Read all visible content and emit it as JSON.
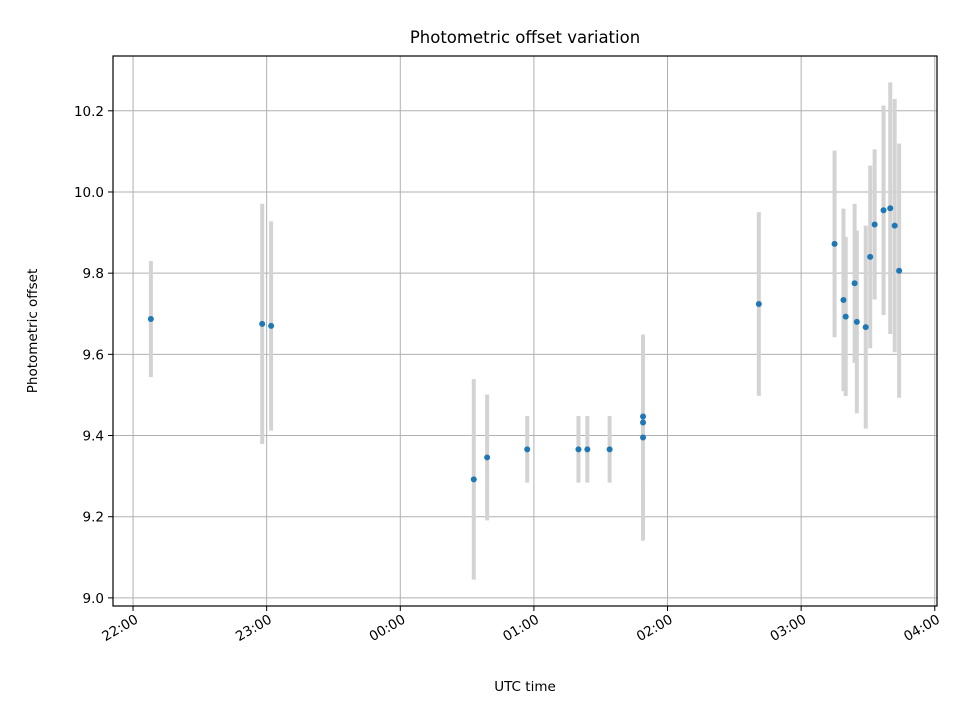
{
  "chart_data": {
    "type": "scatter",
    "title": "Photometric offset variation",
    "xlabel": "UTC time",
    "ylabel": "Photometric offset",
    "xlim": [
      "21:51",
      "04:01"
    ],
    "ylim": [
      8.98,
      10.335
    ],
    "grid": true,
    "marker_color": "#1f77b4",
    "errorbar_color": "#d3d3d3",
    "x_ticks": [
      "22:00",
      "23:00",
      "00:00",
      "01:00",
      "02:00",
      "03:00",
      "04:00"
    ],
    "y_ticks": [
      "9.0",
      "9.2",
      "9.4",
      "9.6",
      "9.8",
      "10.0",
      "10.2"
    ],
    "points": [
      {
        "x": "22:08",
        "y": 9.687,
        "yerr": 0.143
      },
      {
        "x": "22:58",
        "y": 9.675,
        "yerr": 0.296
      },
      {
        "x": "23:02",
        "y": 9.67,
        "yerr": 0.258
      },
      {
        "x": "00:33",
        "y": 9.292,
        "yerr": 0.247
      },
      {
        "x": "00:39",
        "y": 9.346,
        "yerr": 0.155
      },
      {
        "x": "00:57",
        "y": 9.366,
        "yerr": 0.082
      },
      {
        "x": "01:20",
        "y": 9.366,
        "yerr": 0.082
      },
      {
        "x": "01:24",
        "y": 9.366,
        "yerr": 0.082
      },
      {
        "x": "01:34",
        "y": 9.366,
        "yerr": 0.082
      },
      {
        "x": "01:49",
        "y": 9.447,
        "yerr": 0.171
      },
      {
        "x": "01:49",
        "y": 9.432,
        "yerr": 0.16
      },
      {
        "x": "01:49",
        "y": 9.395,
        "yerr": 0.254
      },
      {
        "x": "02:41",
        "y": 9.724,
        "yerr": 0.226
      },
      {
        "x": "03:15",
        "y": 9.872,
        "yerr": 0.23
      },
      {
        "x": "03:19",
        "y": 9.734,
        "yerr": 0.225
      },
      {
        "x": "03:20",
        "y": 9.693,
        "yerr": 0.196
      },
      {
        "x": "03:24",
        "y": 9.775,
        "yerr": 0.196
      },
      {
        "x": "03:25",
        "y": 9.68,
        "yerr": 0.225
      },
      {
        "x": "03:29",
        "y": 9.667,
        "yerr": 0.25
      },
      {
        "x": "03:31",
        "y": 9.84,
        "yerr": 0.225
      },
      {
        "x": "03:33",
        "y": 9.92,
        "yerr": 0.185
      },
      {
        "x": "03:37",
        "y": 9.955,
        "yerr": 0.258
      },
      {
        "x": "03:40",
        "y": 9.96,
        "yerr": 0.31
      },
      {
        "x": "03:42",
        "y": 9.917,
        "yerr": 0.312
      },
      {
        "x": "03:44",
        "y": 9.806,
        "yerr": 0.313
      }
    ]
  }
}
